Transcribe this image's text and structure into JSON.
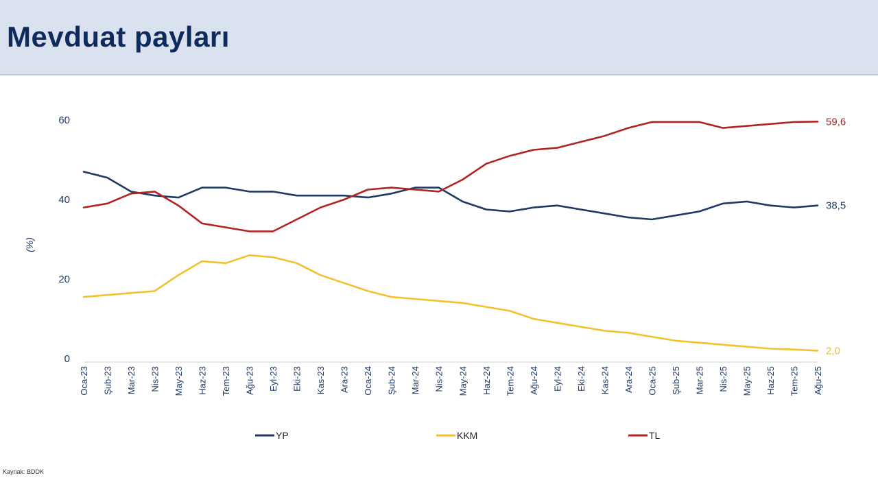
{
  "header": {
    "title": "Mevduat payları"
  },
  "source": "Kaynak: BDDK",
  "colors": {
    "YP": "#1f3864",
    "KKM": "#f2c12e",
    "TL": "#b22222",
    "axis_text": "#1f3864"
  },
  "chart_data": {
    "type": "line",
    "ylabel": "(%)",
    "ylim": [
      0,
      60
    ],
    "yticks": [
      0,
      20,
      40,
      60
    ],
    "grid": false,
    "legend_placement": "bottom",
    "x": [
      "Oca-23",
      "Şub-23",
      "Mar-23",
      "Nis-23",
      "May-23",
      "Haz-23",
      "Tem-23",
      "Ağu-23",
      "Eyl-23",
      "Eki-23",
      "Kas-23",
      "Ara-23",
      "Oca-24",
      "Şub-24",
      "Mar-24",
      "Nis-24",
      "May-24",
      "Haz-24",
      "Tem-24",
      "Ağu-24",
      "Eyl-24",
      "Eki-24",
      "Kas-24",
      "Ara-24",
      "Oca-25",
      "Şub-25",
      "Mar-25",
      "Nis-25",
      "May-25",
      "Haz-25",
      "Tem-25",
      "Ağu-25"
    ],
    "series": [
      {
        "name": "YP",
        "color_key": "YP",
        "end_label": "38,5",
        "values": [
          47.0,
          45.5,
          42.0,
          41.0,
          40.5,
          43.0,
          43.0,
          42.0,
          42.0,
          41.0,
          41.0,
          41.0,
          40.5,
          41.5,
          43.0,
          43.0,
          39.5,
          37.5,
          37.0,
          38.0,
          38.5,
          37.5,
          36.5,
          35.5,
          35.0,
          36.0,
          37.0,
          39.0,
          39.5,
          38.5,
          38.0,
          38.5
        ]
      },
      {
        "name": "KKM",
        "color_key": "KKM",
        "end_label": "2,0",
        "values": [
          15.5,
          16.0,
          16.5,
          17.0,
          21.0,
          24.5,
          24.0,
          26.0,
          25.5,
          24.0,
          21.0,
          19.0,
          17.0,
          15.5,
          15.0,
          14.5,
          14.0,
          13.0,
          12.0,
          10.0,
          9.0,
          8.0,
          7.0,
          6.5,
          5.5,
          4.5,
          4.0,
          3.5,
          3.0,
          2.5,
          2.3,
          2.0
        ]
      },
      {
        "name": "TL",
        "color_key": "TL",
        "end_label": "59,6",
        "values": [
          38.0,
          39.0,
          41.5,
          42.0,
          38.5,
          34.0,
          33.0,
          32.0,
          32.0,
          35.0,
          38.0,
          40.0,
          42.5,
          43.0,
          42.5,
          42.0,
          45.0,
          49.0,
          51.0,
          52.5,
          53.0,
          54.5,
          56.0,
          58.0,
          59.5,
          59.5,
          59.5,
          58.0,
          58.5,
          59.0,
          59.5,
          59.6
        ]
      }
    ]
  }
}
